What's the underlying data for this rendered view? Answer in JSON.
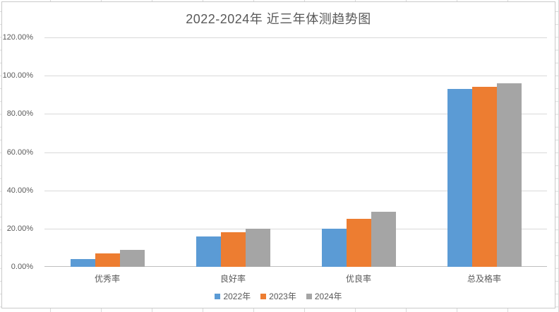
{
  "chart_data": {
    "type": "bar",
    "title": "2022-2024年 近三年体测趋势图",
    "categories": [
      "优秀率",
      "良好率",
      "优良率",
      "总及格率"
    ],
    "series": [
      {
        "name": "2022年",
        "color": "#5B9BD5",
        "values": [
          4,
          16,
          20,
          93
        ]
      },
      {
        "name": "2023年",
        "color": "#ED7D31",
        "values": [
          7,
          18,
          25,
          94
        ]
      },
      {
        "name": "2024年",
        "color": "#A5A5A5",
        "values": [
          9,
          20,
          29,
          96
        ]
      }
    ],
    "y_axis": {
      "tick_labels": [
        "120.00%",
        "100.00%",
        "80.00%",
        "60.00%",
        "40.00%",
        "20.00%",
        "0.00%"
      ],
      "min": 0,
      "max": 120,
      "unit": "%"
    },
    "grid": true,
    "legend_position": "bottom"
  },
  "colors": {
    "text": "#595959",
    "gridline": "#D9D9D9",
    "axis_line": "#BFBFBF",
    "chart_border": "#C9C9C9",
    "sheet_gridline": "#D9D9D9"
  }
}
